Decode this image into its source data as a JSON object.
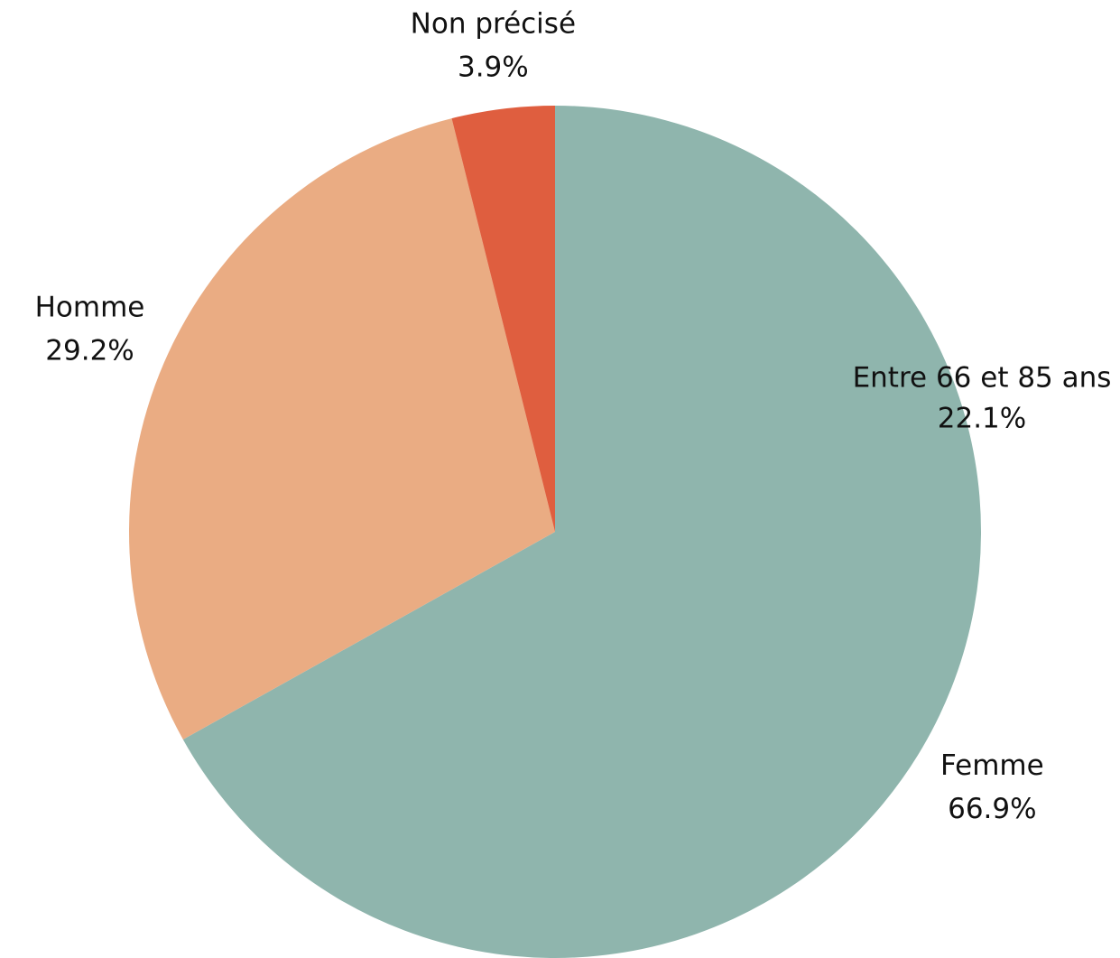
{
  "chart_data": {
    "type": "pie",
    "categories": [
      "Femme",
      "Homme",
      "Non précisé"
    ],
    "values": [
      66.9,
      29.2,
      3.9
    ],
    "value_labels": [
      "66.9%",
      "29.2%",
      "3.9%"
    ],
    "colors": [
      "#8fb5ad",
      "#eaac83",
      "#df5e3f"
    ],
    "annotations": [
      {
        "label": "Entre 66 et 85 ans",
        "value": 22.1,
        "value_label": "22.1%"
      }
    ]
  }
}
